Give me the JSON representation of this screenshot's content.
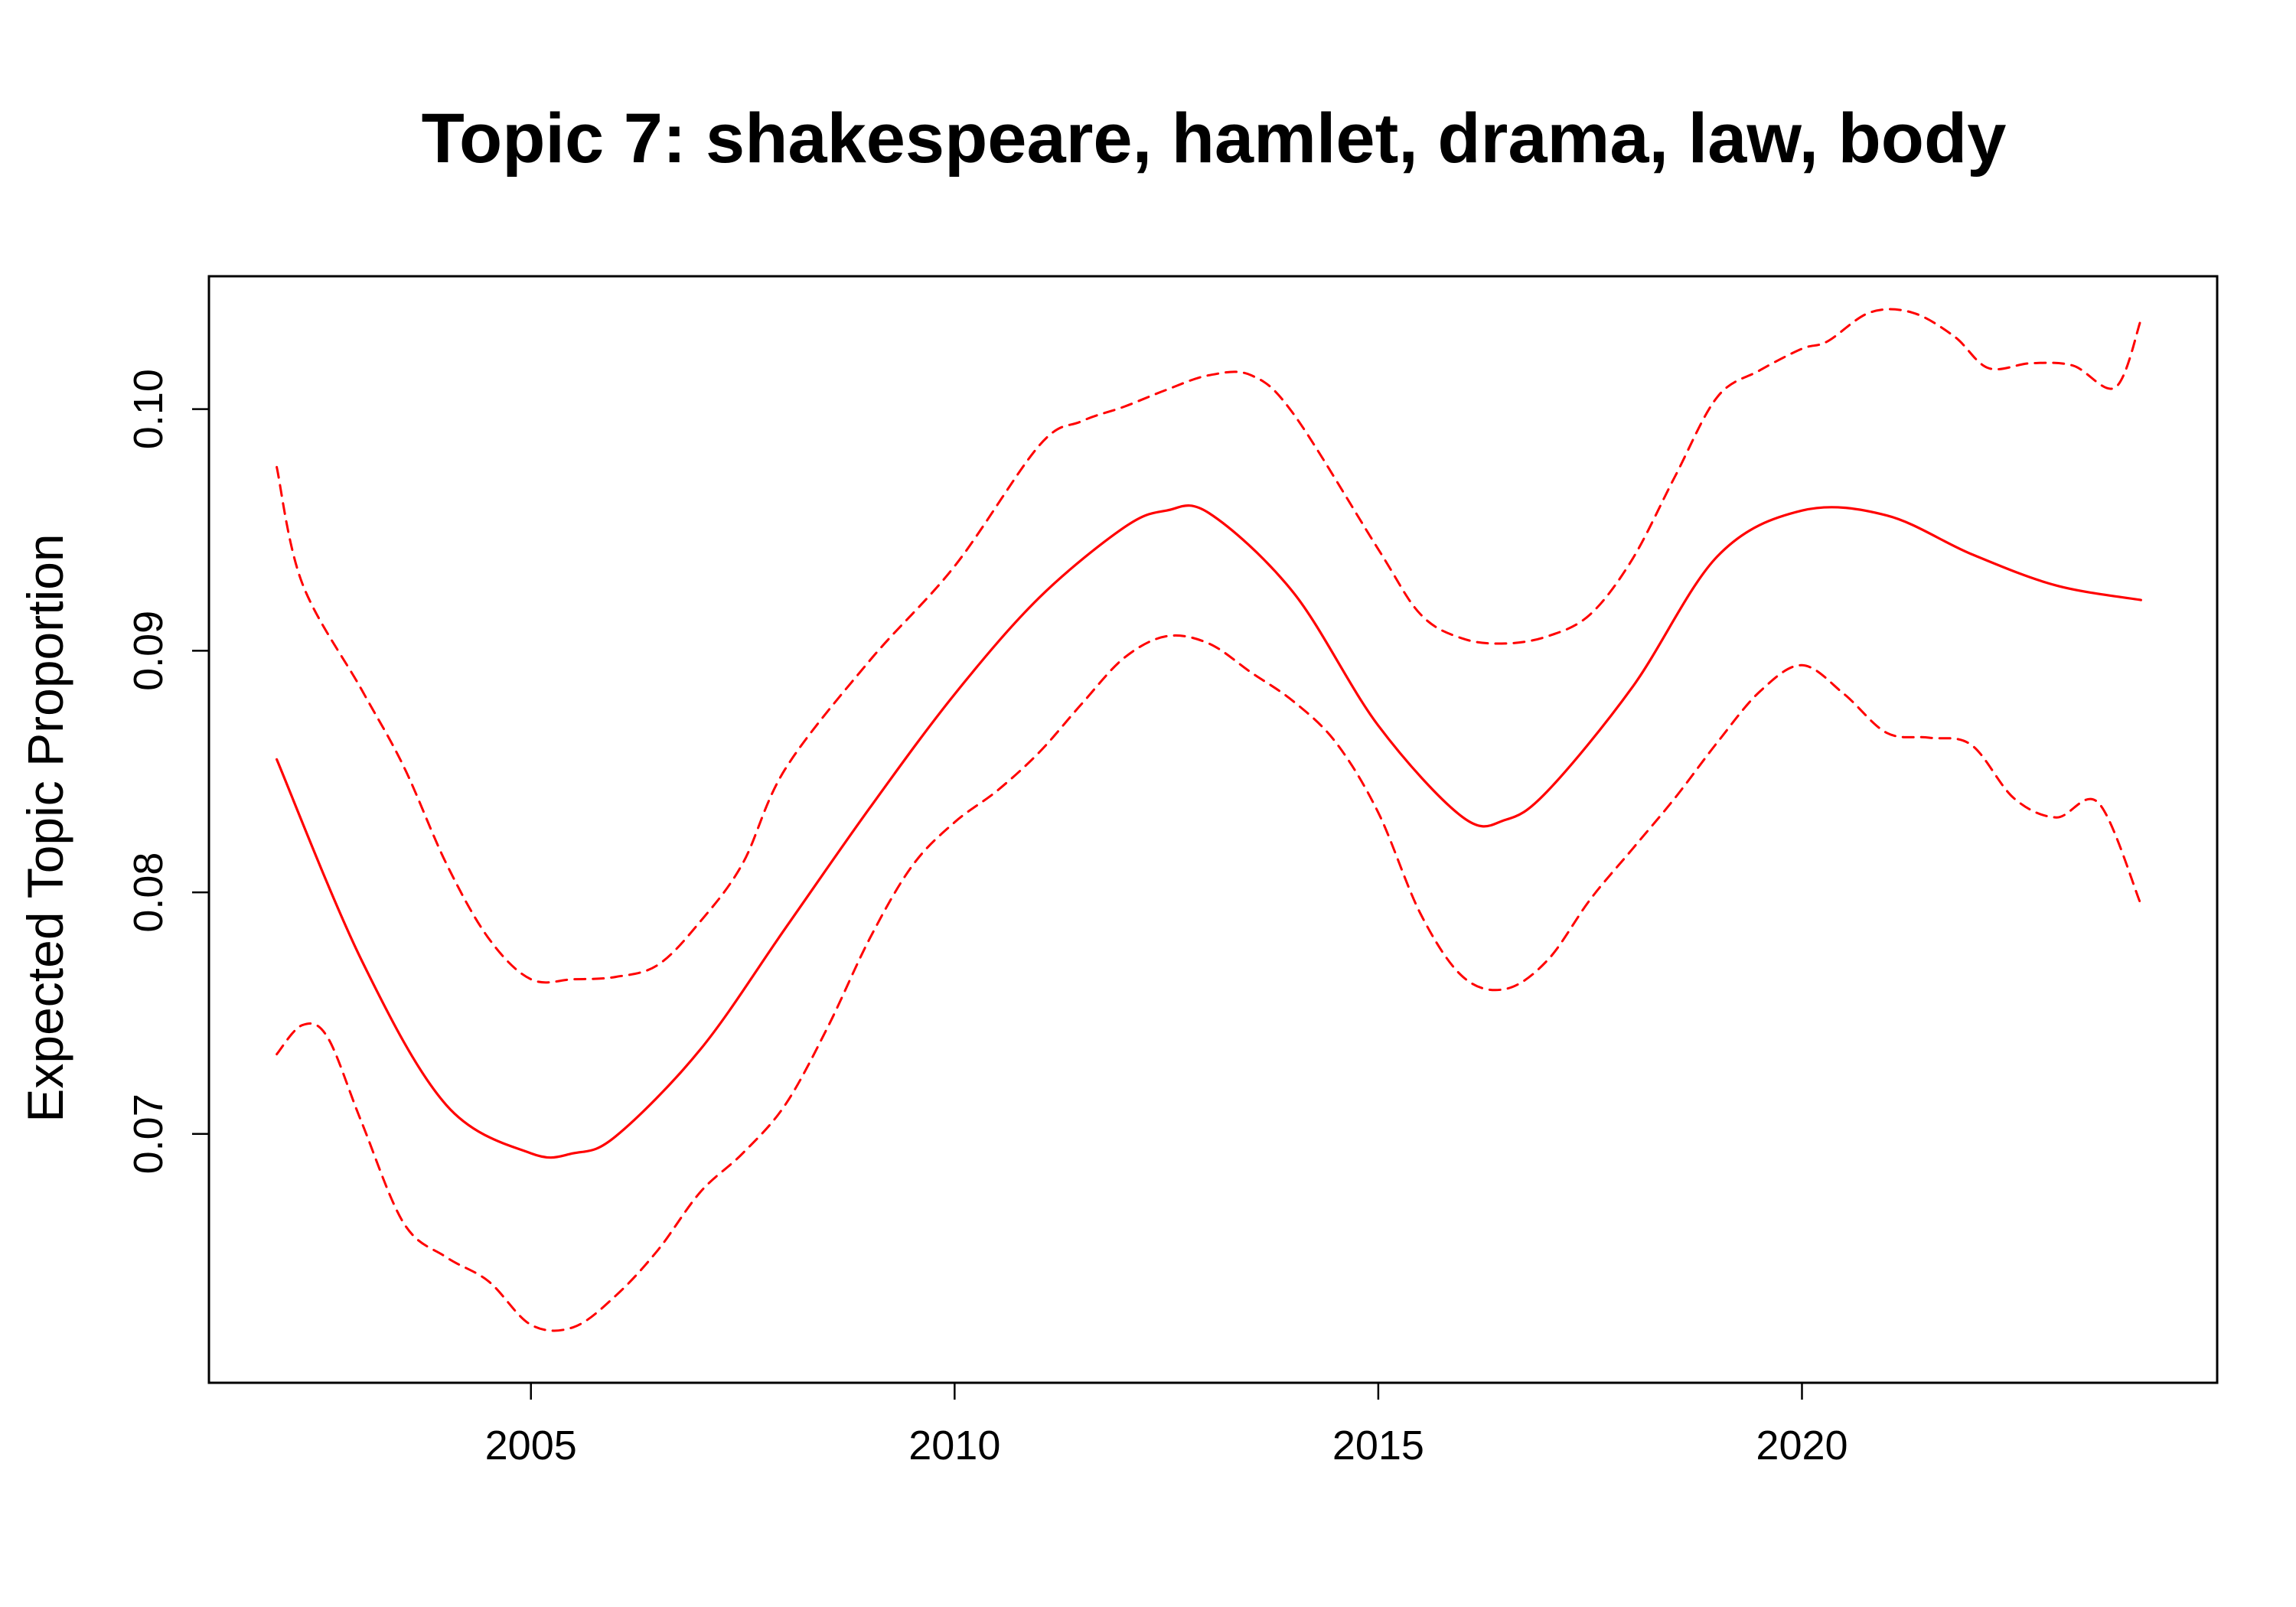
{
  "chart_data": {
    "type": "line",
    "title": "Topic 7: shakespeare, hamlet, drama, law, body",
    "xlabel": "",
    "ylabel": "Expected Topic Proportion",
    "xlim": [
      2001.2,
      2024.9
    ],
    "ylim": [
      0.0597,
      0.1055
    ],
    "x_ticks": [
      2005,
      2010,
      2015,
      2020
    ],
    "x_tick_labels": [
      "2005",
      "2010",
      "2015",
      "2020"
    ],
    "y_ticks": [
      0.07,
      0.08,
      0.09,
      0.1
    ],
    "y_tick_labels": [
      "0.07",
      "0.08",
      "0.09",
      "0.10"
    ],
    "grid": false,
    "box": true,
    "line_color": "#ff0000",
    "series": [
      {
        "role": "estimate",
        "style": "solid",
        "x": [
          2002,
          2003,
          2004,
          2005,
          2005.5,
          2006,
          2007,
          2008,
          2009,
          2010,
          2011,
          2012,
          2012.5,
          2013,
          2014,
          2015,
          2016,
          2016.5,
          2017,
          2018,
          2019,
          2020,
          2021,
          2022,
          2023,
          2024
        ],
        "y": [
          0.0855,
          0.0772,
          0.0712,
          0.0692,
          0.0692,
          0.0699,
          0.0735,
          0.0785,
          0.0835,
          0.0882,
          0.0922,
          0.0951,
          0.0958,
          0.0957,
          0.0924,
          0.0869,
          0.0831,
          0.083,
          0.0842,
          0.0885,
          0.0939,
          0.0958,
          0.0956,
          0.094,
          0.0927,
          0.0921
        ]
      },
      {
        "role": "upper",
        "style": "dashed",
        "x": [
          2002,
          2002.3,
          2003,
          2003.5,
          2004,
          2004.5,
          2005,
          2005.5,
          2006,
          2006.5,
          2007,
          2007.5,
          2008,
          2009,
          2010,
          2011,
          2011.5,
          2012,
          2012.5,
          2013,
          2013.5,
          2014,
          2015,
          2015.5,
          2016,
          2016.5,
          2017,
          2017.5,
          2018,
          2018.5,
          2019,
          2019.5,
          2020,
          2020.3,
          2020.8,
          2021.3,
          2021.8,
          2022.2,
          2022.7,
          2023.2,
          2023.7,
          2024
        ],
        "y": [
          0.0976,
          0.0928,
          0.0884,
          0.0852,
          0.0812,
          0.0781,
          0.0764,
          0.0764,
          0.0765,
          0.077,
          0.0788,
          0.0812,
          0.0851,
          0.0896,
          0.0935,
          0.0985,
          0.0995,
          0.1001,
          0.1008,
          0.1014,
          0.1014,
          0.0998,
          0.0942,
          0.0915,
          0.0905,
          0.0903,
          0.0906,
          0.0915,
          0.0938,
          0.0972,
          0.1005,
          0.1016,
          0.1025,
          0.1028,
          0.104,
          0.104,
          0.103,
          0.1017,
          0.1019,
          0.1018,
          0.1009,
          0.1037
        ]
      },
      {
        "role": "lower",
        "style": "dashed",
        "x": [
          2002,
          2002.3,
          2002.6,
          2003,
          2003.5,
          2004,
          2004.5,
          2005,
          2005.5,
          2006,
          2006.5,
          2007,
          2007.5,
          2008,
          2008.5,
          2009,
          2009.5,
          2010,
          2010.5,
          2011,
          2011.5,
          2012,
          2012.5,
          2013,
          2013.5,
          2014,
          2014.5,
          2015,
          2015.5,
          2016,
          2016.5,
          2017,
          2017.5,
          2018,
          2018.5,
          2019,
          2019.5,
          2020,
          2020.5,
          2021,
          2021.5,
          2022,
          2022.5,
          2023,
          2023.5,
          2024
        ],
        "y": [
          0.0733,
          0.0745,
          0.074,
          0.0705,
          0.0663,
          0.0649,
          0.0639,
          0.0621,
          0.062,
          0.0633,
          0.0652,
          0.0676,
          0.0692,
          0.0712,
          0.0744,
          0.0781,
          0.0811,
          0.0829,
          0.0842,
          0.0858,
          0.0878,
          0.0897,
          0.0906,
          0.0903,
          0.0891,
          0.0879,
          0.0862,
          0.0833,
          0.0791,
          0.0765,
          0.076,
          0.0772,
          0.0797,
          0.0818,
          0.0839,
          0.0862,
          0.0883,
          0.0894,
          0.0882,
          0.0866,
          0.0864,
          0.0861,
          0.0839,
          0.0831,
          0.0837,
          0.0795
        ]
      }
    ]
  }
}
